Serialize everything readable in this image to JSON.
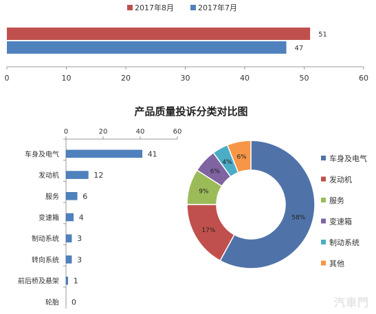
{
  "chart_data": [
    {
      "type": "bar",
      "orientation": "horizontal",
      "series": [
        {
          "name": "2017年8月",
          "color": "#c0504d",
          "values": [
            51
          ]
        },
        {
          "name": "2017年7月",
          "color": "#4f81bd",
          "values": [
            47
          ]
        }
      ],
      "xlim": [
        0,
        60
      ],
      "xticks": [
        "0",
        "10",
        "20",
        "30",
        "40",
        "50",
        "60"
      ],
      "legend": "top",
      "grid": false
    },
    {
      "type": "bar",
      "orientation": "horizontal",
      "title": "产品质量投诉分类对比图",
      "categories": [
        "车身及电气",
        "发动机",
        "服务",
        "变速箱",
        "制动系统",
        "转向系统",
        "前后桥及悬架",
        "轮胎"
      ],
      "values": [
        41,
        12,
        6,
        4,
        3,
        3,
        1,
        0
      ],
      "color": "#4f81bd",
      "xlim": [
        0,
        60
      ],
      "xticks": [
        "0",
        "20",
        "40",
        "60"
      ],
      "grid": false
    },
    {
      "type": "pie",
      "style": "donut",
      "labels": [
        "车身及电气",
        "发动机",
        "服务",
        "变速箱",
        "制动系统",
        "其他"
      ],
      "values": [
        58,
        17,
        9,
        6,
        4,
        6
      ],
      "value_labels": [
        "58%",
        "17%",
        "9%",
        "6%",
        "4%",
        "6%"
      ],
      "colors": [
        "#4f73a8",
        "#c0504d",
        "#9bbb59",
        "#8064a2",
        "#4bacc6",
        "#f79646"
      ],
      "legend": "right"
    }
  ],
  "watermark": "汽車門"
}
